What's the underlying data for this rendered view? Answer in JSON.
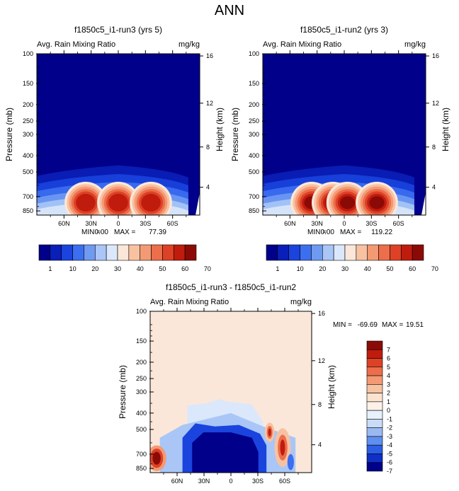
{
  "figure_title": "ANN",
  "chart_data": [
    {
      "type": "heatmap",
      "panel": "top-left",
      "title": "f1850c5_i1-run3 (yrs 5)",
      "left_label": "Avg. Rain Mixing Ratio",
      "right_label": "mg/kg",
      "ylabel": "Pressure (mb)",
      "y2label": "Height (km)",
      "y_ticks": [
        "100",
        "150",
        "200",
        "250",
        "300",
        "400",
        "500",
        "700",
        "850"
      ],
      "y2_ticks": [
        "16",
        "12",
        "8",
        "4"
      ],
      "x_ticks": [
        "60N",
        "30N",
        "0",
        "30S",
        "60S"
      ],
      "stats": {
        "min_label": "MIN =",
        "min": "0.00",
        "max_label": "MAX =",
        "max": "77.39"
      },
      "colorbar_ticks": [
        "1",
        "10",
        "20",
        "30",
        "40",
        "50",
        "60",
        "70"
      ],
      "peak_value": 77.39
    },
    {
      "type": "heatmap",
      "panel": "top-right",
      "title": "f1850c5_i1-run2 (yrs 3)",
      "left_label": "Avg. Rain Mixing Ratio",
      "right_label": "mg/kg",
      "ylabel": "Pressure (mb)",
      "y2label": "Height (km)",
      "y_ticks": [
        "100",
        "150",
        "200",
        "250",
        "300",
        "400",
        "500",
        "700",
        "850"
      ],
      "y2_ticks": [
        "16",
        "12",
        "8",
        "4"
      ],
      "x_ticks": [
        "60N",
        "30N",
        "0",
        "30S",
        "60S"
      ],
      "stats": {
        "min_label": "MIN =",
        "min": "0.00",
        "max_label": "MAX =",
        "max": "119.22"
      },
      "colorbar_ticks": [
        "1",
        "10",
        "20",
        "30",
        "40",
        "50",
        "60",
        "70"
      ],
      "peak_value": 119.22
    },
    {
      "type": "heatmap",
      "panel": "bottom",
      "title": "f1850c5_i1-run3 - f1850c5_i1-run2",
      "left_label": "Avg. Rain Mixing Ratio",
      "right_label": "mg/kg",
      "ylabel": "Pressure (mb)",
      "y2label": "Height (km)",
      "y_ticks": [
        "100",
        "150",
        "200",
        "250",
        "300",
        "400",
        "500",
        "700",
        "850"
      ],
      "y2_ticks": [
        "16",
        "12",
        "8",
        "4"
      ],
      "x_ticks": [
        "60N",
        "30N",
        "0",
        "30S",
        "60S"
      ],
      "stats": {
        "min_label": "MIN =",
        "min": "-69.69",
        "max_label": "MAX =",
        "max": "19.51"
      },
      "colorbar_ticks": [
        "7",
        "6",
        "5",
        "4",
        "3",
        "2",
        "1",
        "0",
        "-1",
        "-2",
        "-3",
        "-4",
        "-5",
        "-6",
        "-7"
      ]
    }
  ],
  "colors": {
    "seq": [
      "#00008a",
      "#0a1fb8",
      "#1a44dd",
      "#3c6ef0",
      "#6f9af2",
      "#a9c6f6",
      "#dbe8fb",
      "#fbe7d9",
      "#f8c2a2",
      "#f39a74",
      "#ec6e4b",
      "#dd4126",
      "#c01c0e",
      "#8c0a06"
    ],
    "div": [
      "#8c0a06",
      "#c01c0e",
      "#dd4126",
      "#ec6e4b",
      "#f39a74",
      "#f8c2a2",
      "#fbe3cf",
      "#fdf1e8",
      "#e8f0fb",
      "#c9dcf7",
      "#9ab9f2",
      "#5f8ff0",
      "#2d5fe4",
      "#0f2fc6",
      "#00008a"
    ]
  }
}
